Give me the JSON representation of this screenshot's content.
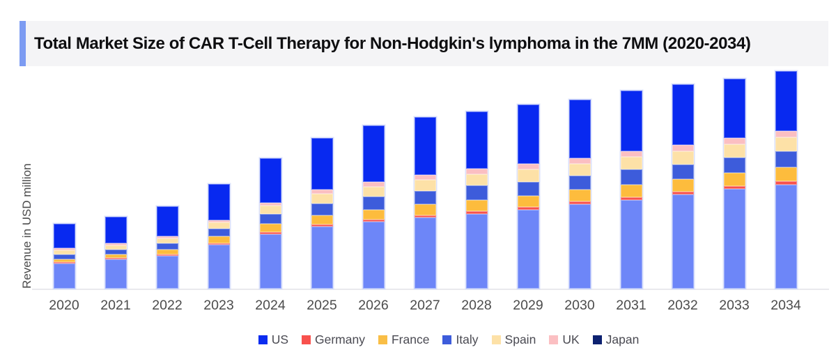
{
  "page": {
    "background": "#FFFFFF"
  },
  "header": {
    "title": "Total Market Size of CAR T-Cell Therapy for Non-Hodgkin's lymphoma in the 7MM (2020-2034)",
    "accent_color": "#7C9BF2",
    "band_bg": "#F4F4F6"
  },
  "chart_data": {
    "type": "bar",
    "stacked": true,
    "title": "Total Market Size of CAR T-Cell Therapy for Non-Hodgkin's lymphoma in the 7MM (2020-2034)",
    "xlabel": "",
    "ylabel": "Revenue in USD million",
    "y_tick_labels": [],
    "grid": false,
    "legend_position": "bottom",
    "value_unit": "relative height units (chart shows no numeric axis scale)",
    "ylim": [
      0,
      320
    ],
    "categories": [
      "2020",
      "2021",
      "2022",
      "2023",
      "2024",
      "2025",
      "2026",
      "2027",
      "2028",
      "2029",
      "2030",
      "2031",
      "2032",
      "2033",
      "2034"
    ],
    "series_stack_order_bottom_to_top": [
      "Japan",
      "Germany",
      "France",
      "Italy",
      "Spain",
      "UK",
      "US"
    ],
    "series": [
      {
        "name": "Japan",
        "color": "#6D86F8",
        "legend_color": "#0D2170",
        "values": [
          36,
          42,
          47,
          63,
          78,
          89,
          96,
          102,
          107,
          113,
          121,
          127,
          135,
          143,
          149
        ]
      },
      {
        "name": "Germany",
        "color": "#F8514D",
        "legend_color": "#F8514D",
        "values": [
          2,
          2,
          2,
          2,
          3,
          3,
          3,
          3,
          4,
          4,
          4,
          4,
          4,
          4,
          5
        ]
      },
      {
        "name": "France",
        "color": "#FDBC3D",
        "legend_color": "#F9BE46",
        "values": [
          4,
          5.5,
          7,
          10,
          12,
          13,
          14,
          16,
          16,
          16,
          17,
          18,
          18,
          19,
          20
        ]
      },
      {
        "name": "Italy",
        "color": "#3D5CDB",
        "legend_color": "#3D5CDB",
        "values": [
          7,
          7,
          9,
          11,
          14,
          17,
          19,
          19,
          21,
          20,
          20,
          22,
          21,
          22,
          23
        ]
      },
      {
        "name": "Spain",
        "color": "#FDE1A7",
        "legend_color": "#FDE1A7",
        "values": [
          6,
          6,
          7,
          9,
          12,
          14,
          14,
          16,
          16,
          18,
          17,
          18,
          19,
          19,
          20
        ]
      },
      {
        "name": "UK",
        "color": "#FBBFC2",
        "legend_color": "#FBBFC2",
        "values": [
          3,
          2.5,
          3.5,
          3.5,
          4.5,
          6,
          7,
          7,
          8,
          8,
          8,
          8,
          9,
          9,
          9
        ]
      },
      {
        "name": "US",
        "color": "#0829F0",
        "legend_color": "#0B2CF0",
        "values": [
          35,
          38,
          43,
          52,
          64,
          74,
          81,
          83,
          82,
          85,
          84,
          87,
          87,
          85,
          86
        ]
      }
    ],
    "legend_order": [
      "US",
      "Germany",
      "France",
      "Italy",
      "Spain",
      "UK",
      "Japan"
    ],
    "axis": {
      "line_color": "#E9E9ED",
      "tick_label_color": "#4C4C4C"
    }
  }
}
